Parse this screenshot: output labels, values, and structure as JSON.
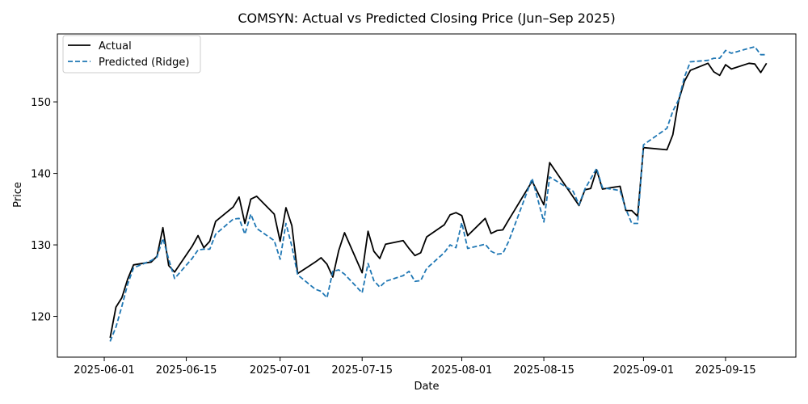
{
  "chart_data": {
    "type": "line",
    "title": "COMSYN: Actual vs Predicted Closing Price (Jun–Sep 2025)",
    "xlabel": "Date",
    "ylabel": "Price",
    "xlim": [
      "2025-05-24",
      "2025-09-27"
    ],
    "ylim": [
      114.3,
      159.5
    ],
    "x_ticks": [
      "2025-06-01",
      "2025-06-15",
      "2025-07-01",
      "2025-07-15",
      "2025-08-01",
      "2025-08-15",
      "2025-09-01",
      "2025-09-15"
    ],
    "y_ticks": [
      120,
      130,
      140,
      150
    ],
    "grid": false,
    "legend": "top-left",
    "colors": {
      "actual": "#000000",
      "predicted": "#1f77b4"
    },
    "series": [
      {
        "name": "Actual",
        "style": "solid",
        "points": [
          [
            "2025-06-02",
            117.0
          ],
          [
            "2025-06-03",
            121.3
          ],
          [
            "2025-06-04",
            122.6
          ],
          [
            "2025-06-05",
            125.2
          ],
          [
            "2025-06-06",
            127.2
          ],
          [
            "2025-06-09",
            127.6
          ],
          [
            "2025-06-10",
            128.4
          ],
          [
            "2025-06-11",
            132.4
          ],
          [
            "2025-06-12",
            127.1
          ],
          [
            "2025-06-13",
            126.2
          ],
          [
            "2025-06-16",
            129.8
          ],
          [
            "2025-06-17",
            131.3
          ],
          [
            "2025-06-18",
            129.6
          ],
          [
            "2025-06-19",
            130.5
          ],
          [
            "2025-06-20",
            133.3
          ],
          [
            "2025-06-23",
            135.3
          ],
          [
            "2025-06-24",
            136.7
          ],
          [
            "2025-06-25",
            133.0
          ],
          [
            "2025-06-26",
            136.4
          ],
          [
            "2025-06-27",
            136.8
          ],
          [
            "2025-06-30",
            134.3
          ],
          [
            "2025-07-01",
            130.5
          ],
          [
            "2025-07-02",
            135.2
          ],
          [
            "2025-07-03",
            132.7
          ],
          [
            "2025-07-04",
            126.0
          ],
          [
            "2025-07-07",
            127.6
          ],
          [
            "2025-07-08",
            128.2
          ],
          [
            "2025-07-09",
            127.3
          ],
          [
            "2025-07-10",
            125.5
          ],
          [
            "2025-07-11",
            129.2
          ],
          [
            "2025-07-12",
            131.7
          ],
          [
            "2025-07-15",
            126.1
          ],
          [
            "2025-07-16",
            131.9
          ],
          [
            "2025-07-17",
            129.1
          ],
          [
            "2025-07-18",
            128.1
          ],
          [
            "2025-07-19",
            130.1
          ],
          [
            "2025-07-22",
            130.6
          ],
          [
            "2025-07-23",
            129.5
          ],
          [
            "2025-07-24",
            128.5
          ],
          [
            "2025-07-25",
            128.9
          ],
          [
            "2025-07-26",
            131.1
          ],
          [
            "2025-07-29",
            132.8
          ],
          [
            "2025-07-30",
            134.2
          ],
          [
            "2025-07-31",
            134.5
          ],
          [
            "2025-08-01",
            134.1
          ],
          [
            "2025-08-02",
            131.3
          ],
          [
            "2025-08-05",
            133.7
          ],
          [
            "2025-08-06",
            131.6
          ],
          [
            "2025-08-07",
            132.0
          ],
          [
            "2025-08-08",
            132.1
          ],
          [
            "2025-08-09",
            133.5
          ],
          [
            "2025-08-13",
            138.9
          ],
          [
            "2025-08-15",
            135.6
          ],
          [
            "2025-08-16",
            141.5
          ],
          [
            "2025-08-21",
            135.5
          ],
          [
            "2025-08-22",
            137.7
          ],
          [
            "2025-08-23",
            137.9
          ],
          [
            "2025-08-24",
            140.5
          ],
          [
            "2025-08-25",
            137.8
          ],
          [
            "2025-08-28",
            138.2
          ],
          [
            "2025-08-29",
            134.8
          ],
          [
            "2025-08-30",
            134.8
          ],
          [
            "2025-08-31",
            134.0
          ],
          [
            "2025-09-01",
            143.6
          ],
          [
            "2025-09-05",
            143.3
          ],
          [
            "2025-09-06",
            145.4
          ],
          [
            "2025-09-07",
            150.2
          ],
          [
            "2025-09-08",
            152.9
          ],
          [
            "2025-09-09",
            154.4
          ],
          [
            "2025-09-12",
            155.4
          ],
          [
            "2025-09-13",
            154.2
          ],
          [
            "2025-09-14",
            153.7
          ],
          [
            "2025-09-15",
            155.2
          ],
          [
            "2025-09-16",
            154.6
          ],
          [
            "2025-09-19",
            155.4
          ],
          [
            "2025-09-20",
            155.3
          ],
          [
            "2025-09-21",
            154.1
          ],
          [
            "2025-09-22",
            155.4
          ]
        ]
      },
      {
        "name": "Predicted (Ridge)",
        "style": "dashed",
        "points": [
          [
            "2025-06-02",
            116.5
          ],
          [
            "2025-06-03",
            118.5
          ],
          [
            "2025-06-04",
            121.4
          ],
          [
            "2025-06-05",
            124.5
          ],
          [
            "2025-06-06",
            126.8
          ],
          [
            "2025-06-09",
            127.8
          ],
          [
            "2025-06-10",
            128.3
          ],
          [
            "2025-06-11",
            130.9
          ],
          [
            "2025-06-12",
            128.0
          ],
          [
            "2025-06-13",
            125.3
          ],
          [
            "2025-06-16",
            128.1
          ],
          [
            "2025-06-17",
            129.3
          ],
          [
            "2025-06-18",
            129.4
          ],
          [
            "2025-06-19",
            129.4
          ],
          [
            "2025-06-20",
            131.5
          ],
          [
            "2025-06-23",
            133.6
          ],
          [
            "2025-06-24",
            133.7
          ],
          [
            "2025-06-25",
            131.5
          ],
          [
            "2025-06-26",
            134.3
          ],
          [
            "2025-06-27",
            132.3
          ],
          [
            "2025-06-30",
            130.6
          ],
          [
            "2025-07-01",
            128.0
          ],
          [
            "2025-07-02",
            133.0
          ],
          [
            "2025-07-03",
            129.8
          ],
          [
            "2025-07-04",
            125.8
          ],
          [
            "2025-07-07",
            123.8
          ],
          [
            "2025-07-08",
            123.5
          ],
          [
            "2025-07-09",
            122.6
          ],
          [
            "2025-07-10",
            126.3
          ],
          [
            "2025-07-11",
            126.5
          ],
          [
            "2025-07-12",
            125.9
          ],
          [
            "2025-07-15",
            123.3
          ],
          [
            "2025-07-16",
            127.4
          ],
          [
            "2025-07-17",
            125.0
          ],
          [
            "2025-07-18",
            124.1
          ],
          [
            "2025-07-19",
            124.9
          ],
          [
            "2025-07-22",
            125.7
          ],
          [
            "2025-07-23",
            126.3
          ],
          [
            "2025-07-24",
            124.9
          ],
          [
            "2025-07-25",
            125.0
          ],
          [
            "2025-07-26",
            126.7
          ],
          [
            "2025-07-29",
            128.9
          ],
          [
            "2025-07-30",
            130.0
          ],
          [
            "2025-07-31",
            129.6
          ],
          [
            "2025-08-01",
            133.1
          ],
          [
            "2025-08-02",
            129.5
          ],
          [
            "2025-08-05",
            130.1
          ],
          [
            "2025-08-06",
            129.1
          ],
          [
            "2025-08-07",
            128.7
          ],
          [
            "2025-08-08",
            128.8
          ],
          [
            "2025-08-09",
            130.5
          ],
          [
            "2025-08-13",
            139.3
          ],
          [
            "2025-08-15",
            133.2
          ],
          [
            "2025-08-16",
            139.5
          ],
          [
            "2025-08-20",
            137.5
          ],
          [
            "2025-08-21",
            135.6
          ],
          [
            "2025-08-22",
            137.8
          ],
          [
            "2025-08-24",
            140.7
          ],
          [
            "2025-08-25",
            138.0
          ],
          [
            "2025-08-28",
            137.6
          ],
          [
            "2025-08-29",
            135.0
          ],
          [
            "2025-08-30",
            133.0
          ],
          [
            "2025-08-31",
            133.0
          ],
          [
            "2025-09-01",
            144.0
          ],
          [
            "2025-09-05",
            146.3
          ],
          [
            "2025-09-06",
            148.7
          ],
          [
            "2025-09-07",
            150.3
          ],
          [
            "2025-09-08",
            153.5
          ],
          [
            "2025-09-09",
            155.6
          ],
          [
            "2025-09-12",
            155.8
          ],
          [
            "2025-09-13",
            156.1
          ],
          [
            "2025-09-14",
            156.1
          ],
          [
            "2025-09-15",
            157.2
          ],
          [
            "2025-09-16",
            156.8
          ],
          [
            "2025-09-19",
            157.5
          ],
          [
            "2025-09-20",
            157.7
          ],
          [
            "2025-09-21",
            156.6
          ],
          [
            "2025-09-22",
            156.6
          ]
        ]
      }
    ]
  }
}
